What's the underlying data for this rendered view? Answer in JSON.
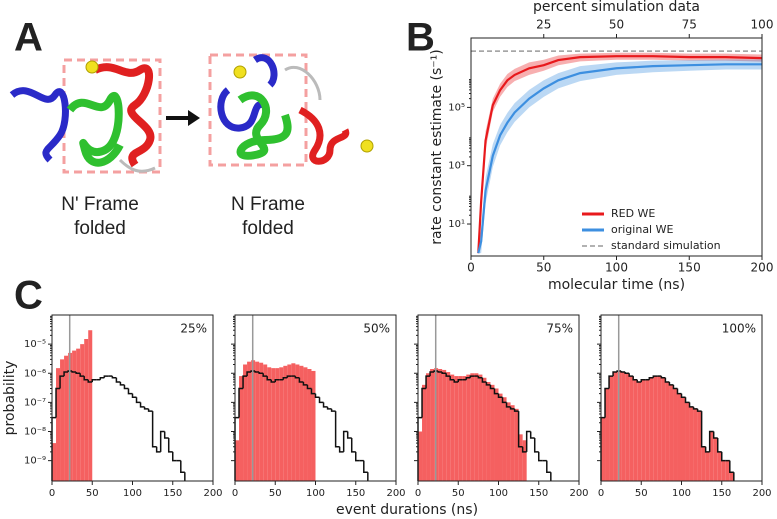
{
  "panel_labels": [
    "A",
    "B",
    "C"
  ],
  "panel_a": {
    "frames": [
      {
        "lines": [
          "N' Frame",
          "folded"
        ]
      },
      {
        "lines": [
          "N Frame",
          "folded"
        ]
      }
    ]
  },
  "shared_xlabel": "event durations (ns)",
  "chart_data": [
    {
      "type": "line",
      "xlabel": "molecular time (ns)",
      "ylabel": "rate constant estimate (s⁻¹)",
      "x2label": "percent simulation data",
      "xlim": [
        0,
        200
      ],
      "xticks": [
        0,
        50,
        100,
        150,
        200
      ],
      "x2lim": [
        0,
        100
      ],
      "x2ticks": [
        25,
        50,
        75,
        100
      ],
      "ylim": [
        0.8,
        24000000
      ],
      "log_y": true,
      "yticks": [
        {
          "value": 10,
          "label": "10¹"
        },
        {
          "value": 1000,
          "label": "10³"
        },
        {
          "value": 100000,
          "label": "10⁵"
        }
      ],
      "x": [
        5,
        7,
        10,
        15,
        20,
        25,
        30,
        40,
        50,
        60,
        75,
        100,
        125,
        150,
        175,
        200
      ],
      "series": [
        {
          "name": "RED WE",
          "color": "#e8191c",
          "values": [
            1,
            62,
            7300,
            120000,
            390000,
            850000,
            1300000,
            2200000,
            2800000,
            4200000,
            5300000,
            5700000,
            5700000,
            5300000,
            5300000,
            4900000
          ],
          "lower": [
            1,
            25,
            3500,
            70000,
            230000,
            500000,
            800000,
            1300000,
            1800000,
            2800000,
            3800000,
            4300000,
            4300000,
            4000000,
            4000000,
            3700000
          ],
          "upper": [
            1,
            150,
            15000,
            200000,
            650000,
            1400000,
            2100000,
            3500000,
            4300000,
            6000000,
            7000000,
            7500000,
            7500000,
            7000000,
            7000000,
            6500000
          ]
        },
        {
          "name": "original WE",
          "color": "#3d8fe0",
          "values": [
            1,
            2.6,
            140,
            2200,
            11000,
            30000,
            67000,
            200000,
            450000,
            850000,
            1500000,
            2200000,
            2600000,
            2800000,
            3000000,
            3000000
          ],
          "lower": [
            1,
            1,
            50,
            900,
            5000,
            14000,
            32000,
            100000,
            230000,
            450000,
            800000,
            1300000,
            1600000,
            1800000,
            2000000,
            2000000
          ],
          "upper": [
            1,
            8,
            400,
            5500,
            25000,
            65000,
            140000,
            400000,
            850000,
            1500000,
            2600000,
            3500000,
            4000000,
            4200000,
            4400000,
            4400000
          ]
        }
      ],
      "reference_line": {
        "name": "standard simulation",
        "value": 8500000,
        "color": "#999999"
      }
    },
    {
      "type": "histogram",
      "annotation": "25%",
      "ylabel": "probability",
      "xlim": [
        0,
        200
      ],
      "xticks": [
        0,
        50,
        100,
        150,
        200
      ],
      "ylim": [
        2e-10,
        0.0001
      ],
      "log_y": true,
      "yticks": [
        {
          "value": 1e-09,
          "label": "10⁻⁹"
        },
        {
          "value": 1e-08,
          "label": "10⁻⁸"
        },
        {
          "value": 1e-07,
          "label": "10⁻⁷"
        },
        {
          "value": 1e-06,
          "label": "10⁻⁶"
        },
        {
          "value": 1e-05,
          "label": "10⁻⁵"
        }
      ],
      "vline": 22,
      "color": "#f56060",
      "bins": [
        0,
        5,
        10,
        15,
        20,
        25,
        30,
        35,
        40,
        45,
        50
      ],
      "counts": [
        4e-09,
        1.5e-06,
        3e-06,
        4e-06,
        5e-06,
        6e-06,
        7e-06,
        1e-05,
        1.5e-05,
        3e-05
      ],
      "reference_bins": [
        0,
        5,
        10,
        15,
        20,
        25,
        30,
        35,
        40,
        45,
        50,
        55,
        60,
        65,
        70,
        75,
        80,
        85,
        90,
        95,
        100,
        105,
        110,
        115,
        120,
        125,
        130,
        135,
        140,
        145,
        150,
        155,
        160,
        165
      ],
      "reference_counts": [
        3e-08,
        3e-07,
        8e-07,
        1.1e-06,
        1.2e-06,
        1.1e-06,
        1e-06,
        8e-07,
        6e-07,
        5e-07,
        6e-07,
        6e-07,
        7e-07,
        8e-07,
        8e-07,
        7e-07,
        5e-07,
        4e-07,
        3e-07,
        2e-07,
        1.5e-07,
        1e-07,
        7e-08,
        6e-08,
        5e-08,
        3e-09,
        2e-09,
        1e-08,
        6e-09,
        2e-09,
        1e-09,
        1e-09,
        4e-10
      ]
    },
    {
      "type": "histogram",
      "annotation": "50%",
      "xlim": [
        0,
        200
      ],
      "xticks": [
        0,
        50,
        100,
        150,
        200
      ],
      "ylim": [
        2e-10,
        0.0001
      ],
      "log_y": true,
      "yticks": [
        1e-09,
        1e-08,
        1e-07,
        1e-06,
        1e-05
      ],
      "vline": 22,
      "color": "#f56060",
      "bins": [
        0,
        5,
        10,
        15,
        20,
        25,
        30,
        35,
        40,
        45,
        50,
        55,
        60,
        65,
        70,
        75,
        80,
        85,
        90,
        95,
        100
      ],
      "counts": [
        5e-09,
        8e-07,
        2e-06,
        2.5e-06,
        2.8e-06,
        2.5e-06,
        2.3e-06,
        2e-06,
        1.6e-06,
        1.5e-06,
        1.5e-06,
        1.6e-06,
        1.8e-06,
        2e-06,
        2.2e-06,
        2e-06,
        1.8e-06,
        1.6e-06,
        1.4e-06,
        1.2e-06
      ],
      "reference_bins": [
        0,
        5,
        10,
        15,
        20,
        25,
        30,
        35,
        40,
        45,
        50,
        55,
        60,
        65,
        70,
        75,
        80,
        85,
        90,
        95,
        100,
        105,
        110,
        115,
        120,
        125,
        130,
        135,
        140,
        145,
        150,
        155,
        160,
        165
      ],
      "reference_counts": [
        3e-08,
        3e-07,
        8e-07,
        1.1e-06,
        1.2e-06,
        1.1e-06,
        1e-06,
        8e-07,
        6e-07,
        5e-07,
        6e-07,
        6e-07,
        7e-07,
        8e-07,
        8e-07,
        7e-07,
        5e-07,
        4e-07,
        3e-07,
        2e-07,
        1.5e-07,
        1e-07,
        7e-08,
        6e-08,
        5e-08,
        3e-09,
        2e-09,
        1e-08,
        6e-09,
        2e-09,
        1e-09,
        1e-09,
        4e-10
      ]
    },
    {
      "type": "histogram",
      "annotation": "75%",
      "xlim": [
        0,
        200
      ],
      "xticks": [
        0,
        50,
        100,
        150,
        200
      ],
      "ylim": [
        2e-10,
        0.0001
      ],
      "log_y": true,
      "yticks": [
        1e-09,
        1e-08,
        1e-07,
        1e-06,
        1e-05
      ],
      "vline": 22,
      "color": "#f56060",
      "bins": [
        0,
        5,
        10,
        15,
        20,
        25,
        30,
        35,
        40,
        45,
        50,
        55,
        60,
        65,
        70,
        75,
        80,
        85,
        90,
        95,
        100,
        105,
        110,
        115,
        120,
        125,
        130,
        135
      ],
      "counts": [
        1e-08,
        4e-07,
        1e-06,
        1.4e-06,
        1.5e-06,
        1.4e-06,
        1.3e-06,
        1.1e-06,
        9e-07,
        8e-07,
        8e-07,
        8e-07,
        9e-07,
        1e-06,
        1e-06,
        9e-07,
        7e-07,
        5e-07,
        4e-07,
        3e-07,
        2e-07,
        1.5e-07,
        1e-07,
        8e-08,
        6e-08,
        8e-09,
        5e-09
      ],
      "reference_bins": [
        0,
        5,
        10,
        15,
        20,
        25,
        30,
        35,
        40,
        45,
        50,
        55,
        60,
        65,
        70,
        75,
        80,
        85,
        90,
        95,
        100,
        105,
        110,
        115,
        120,
        125,
        130,
        135,
        140,
        145,
        150,
        155,
        160,
        165
      ],
      "reference_counts": [
        3e-08,
        3e-07,
        8e-07,
        1.1e-06,
        1.2e-06,
        1.1e-06,
        1e-06,
        8e-07,
        6e-07,
        5e-07,
        6e-07,
        6e-07,
        7e-07,
        8e-07,
        8e-07,
        7e-07,
        5e-07,
        4e-07,
        3e-07,
        2e-07,
        1.5e-07,
        1e-07,
        7e-08,
        6e-08,
        5e-08,
        3e-09,
        2e-09,
        1e-08,
        6e-09,
        2e-09,
        1e-09,
        1e-09,
        4e-10
      ]
    },
    {
      "type": "histogram",
      "annotation": "100%",
      "xlim": [
        0,
        200
      ],
      "xticks": [
        0,
        50,
        100,
        150,
        200
      ],
      "ylim": [
        2e-10,
        0.0001
      ],
      "log_y": true,
      "yticks": [
        1e-09,
        1e-08,
        1e-07,
        1e-06,
        1e-05
      ],
      "vline": 22,
      "color": "#f56060",
      "bins": [
        0,
        5,
        10,
        15,
        20,
        25,
        30,
        35,
        40,
        45,
        50,
        55,
        60,
        65,
        70,
        75,
        80,
        85,
        90,
        95,
        100,
        105,
        110,
        115,
        120,
        125,
        130,
        135,
        140,
        145,
        150,
        155,
        160,
        165
      ],
      "counts": [
        3e-08,
        3e-07,
        8e-07,
        1.1e-06,
        1.2e-06,
        1.1e-06,
        1e-06,
        8e-07,
        6e-07,
        5e-07,
        6e-07,
        6e-07,
        7e-07,
        8e-07,
        8e-07,
        7e-07,
        5e-07,
        4e-07,
        3e-07,
        2e-07,
        1.5e-07,
        1e-07,
        7e-08,
        6e-08,
        5e-08,
        3e-09,
        2e-09,
        1e-08,
        6e-09,
        2e-09,
        1e-09,
        1e-09,
        4e-10
      ],
      "reference_bins": [
        0,
        5,
        10,
        15,
        20,
        25,
        30,
        35,
        40,
        45,
        50,
        55,
        60,
        65,
        70,
        75,
        80,
        85,
        90,
        95,
        100,
        105,
        110,
        115,
        120,
        125,
        130,
        135,
        140,
        145,
        150,
        155,
        160,
        165
      ],
      "reference_counts": [
        3e-08,
        3e-07,
        8e-07,
        1.1e-06,
        1.2e-06,
        1.1e-06,
        1e-06,
        8e-07,
        6e-07,
        5e-07,
        6e-07,
        6e-07,
        7e-07,
        8e-07,
        8e-07,
        7e-07,
        5e-07,
        4e-07,
        3e-07,
        2e-07,
        1.5e-07,
        1e-07,
        7e-08,
        6e-08,
        5e-08,
        3e-09,
        2e-09,
        1e-08,
        6e-09,
        2e-09,
        1e-09,
        1e-09,
        4e-10
      ]
    }
  ]
}
